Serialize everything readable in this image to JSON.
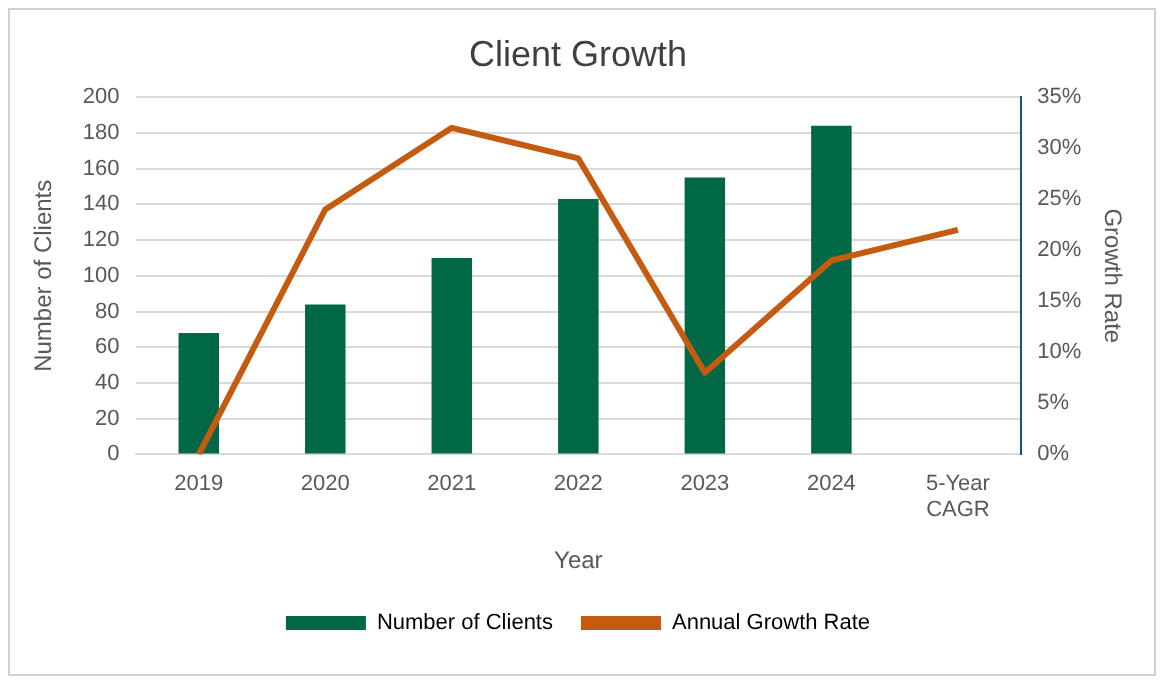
{
  "chart_data": {
    "type": "bar",
    "title": "Client Growth",
    "xlabel": "Year",
    "ylabel": "Number of Clients",
    "y2label": "Growth Rate",
    "categories": [
      "2019",
      "2020",
      "2021",
      "2022",
      "2023",
      "2024",
      "5-Year\nCAGR"
    ],
    "series": [
      {
        "name": "Number of Clients",
        "color": "#006847",
        "values": [
          68,
          84,
          110,
          143,
          155,
          184,
          null
        ]
      },
      {
        "name": "Annual Growth Rate",
        "type": "line",
        "axis": "y2",
        "color": "#c55a11",
        "values": [
          0,
          24,
          32,
          29,
          8,
          19,
          22
        ]
      }
    ],
    "ylim": [
      0,
      200
    ],
    "yticks": [
      0,
      20,
      40,
      60,
      80,
      100,
      120,
      140,
      160,
      180,
      200
    ],
    "y2lim": [
      0,
      35
    ],
    "y2ticks": [
      {
        "value": 0,
        "label": "0%"
      },
      {
        "value": 5,
        "label": "5%"
      },
      {
        "value": 10,
        "label": "10%"
      },
      {
        "value": 15,
        "label": "15%"
      },
      {
        "value": 20,
        "label": "20%"
      },
      {
        "value": 25,
        "label": "25%"
      },
      {
        "value": 30,
        "label": "30%"
      },
      {
        "value": 35,
        "label": "35%"
      }
    ],
    "grid": "y",
    "legend": "bottom",
    "marker": "none",
    "line_style": "solid"
  }
}
